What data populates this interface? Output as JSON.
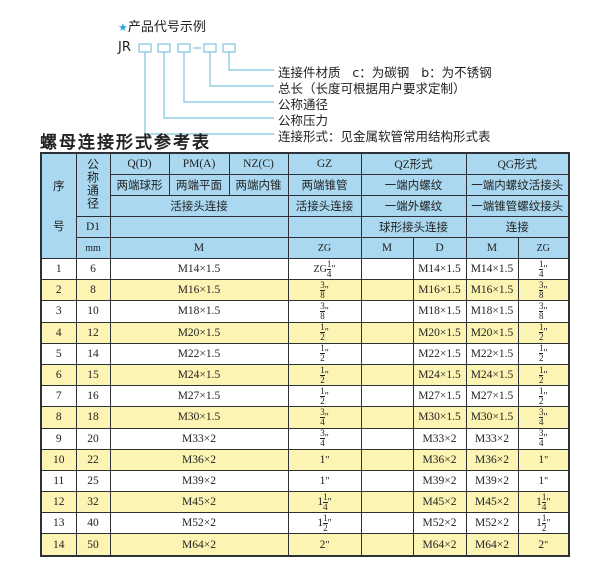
{
  "example": {
    "star_icon": "star-icon",
    "title": "产品代号示例",
    "code_prefix": "JR",
    "labels": [
      "连接件材质   c：为碳钢   b：为不锈钢",
      "总长（长度可根据用户要求定制）",
      "公称通径",
      "公称压力",
      "连接形式：见金属软管常用结构形式表"
    ],
    "accent_color": "#2aa6d9"
  },
  "title": "螺母连接形式参考表",
  "table": {
    "header": {
      "seq": "序",
      "seq2": "号",
      "dn": "公称通径",
      "d1": "D1",
      "mm": "mm",
      "qd": "Q(D)",
      "pma": "PM(A)",
      "nzc": "NZ(C)",
      "gz": "GZ",
      "qz": "QZ形式",
      "qg": "QG形式",
      "qd_desc": "两端球形",
      "pma_desc": "两端平面",
      "nzc_desc": "两端内锥",
      "gz_desc": "两端锥管",
      "qz_desc": "一端内螺纹",
      "qg_desc": "一端内螺纹活接头",
      "live_joint": "活接头连接",
      "gz_joint": "活接头连接",
      "qz_ext": "一端外螺纹",
      "qg_taper": "一端锥管螺纹接头",
      "qz_ball": "球形接头连接",
      "qg_conn": "连接",
      "m": "M",
      "zg": "ZG",
      "qz_m": "M",
      "qz_d": "D",
      "qg_m": "M",
      "qg_zg": "ZG"
    },
    "rows": [
      {
        "no": "1",
        "dn": "6",
        "m": "M14×1.5",
        "zg": {
          "pre": "ZG",
          "whole": "",
          "num": "1",
          "den": "4",
          "suf": "\""
        },
        "qz_d": "M14×1.5",
        "qg_m": "M14×1.5",
        "qg_zg": {
          "pre": "",
          "whole": "",
          "num": "1",
          "den": "4",
          "suf": "\""
        }
      },
      {
        "no": "2",
        "dn": "8",
        "m": "M16×1.5",
        "zg": {
          "pre": "",
          "whole": "",
          "num": "3",
          "den": "8",
          "suf": "\""
        },
        "qz_d": "M16×1.5",
        "qg_m": "M16×1.5",
        "qg_zg": {
          "pre": "",
          "whole": "",
          "num": "3",
          "den": "8",
          "suf": "\""
        }
      },
      {
        "no": "3",
        "dn": "10",
        "m": "M18×1.5",
        "zg": {
          "pre": "",
          "whole": "",
          "num": "3",
          "den": "8",
          "suf": "\""
        },
        "qz_d": "M18×1.5",
        "qg_m": "M18×1.5",
        "qg_zg": {
          "pre": "",
          "whole": "",
          "num": "3",
          "den": "8",
          "suf": "\""
        }
      },
      {
        "no": "4",
        "dn": "12",
        "m": "M20×1.5",
        "zg": {
          "pre": "",
          "whole": "",
          "num": "1",
          "den": "2",
          "suf": "\""
        },
        "qz_d": "M20×1.5",
        "qg_m": "M20×1.5",
        "qg_zg": {
          "pre": "",
          "whole": "",
          "num": "1",
          "den": "2",
          "suf": "\""
        }
      },
      {
        "no": "5",
        "dn": "14",
        "m": "M22×1.5",
        "zg": {
          "pre": "",
          "whole": "",
          "num": "1",
          "den": "2",
          "suf": "\""
        },
        "qz_d": "M22×1.5",
        "qg_m": "M22×1.5",
        "qg_zg": {
          "pre": "",
          "whole": "",
          "num": "1",
          "den": "2",
          "suf": "\""
        }
      },
      {
        "no": "6",
        "dn": "15",
        "m": "M24×1.5",
        "zg": {
          "pre": "",
          "whole": "",
          "num": "1",
          "den": "2",
          "suf": "\""
        },
        "qz_d": "M24×1.5",
        "qg_m": "M24×1.5",
        "qg_zg": {
          "pre": "",
          "whole": "",
          "num": "1",
          "den": "2",
          "suf": "\""
        }
      },
      {
        "no": "7",
        "dn": "16",
        "m": "M27×1.5",
        "zg": {
          "pre": "",
          "whole": "",
          "num": "1",
          "den": "2",
          "suf": "\""
        },
        "qz_d": "M27×1.5",
        "qg_m": "M27×1.5",
        "qg_zg": {
          "pre": "",
          "whole": "",
          "num": "1",
          "den": "2",
          "suf": "\""
        }
      },
      {
        "no": "8",
        "dn": "18",
        "m": "M30×1.5",
        "zg": {
          "pre": "",
          "whole": "",
          "num": "3",
          "den": "4",
          "suf": "\""
        },
        "qz_d": "M30×1.5",
        "qg_m": "M30×1.5",
        "qg_zg": {
          "pre": "",
          "whole": "",
          "num": "3",
          "den": "4",
          "suf": "\""
        }
      },
      {
        "no": "9",
        "dn": "20",
        "m": "M33×2",
        "zg": {
          "pre": "",
          "whole": "",
          "num": "3",
          "den": "4",
          "suf": "\""
        },
        "qz_d": "M33×2",
        "qg_m": "M33×2",
        "qg_zg": {
          "pre": "",
          "whole": "",
          "num": "3",
          "den": "4",
          "suf": "\""
        }
      },
      {
        "no": "10",
        "dn": "22",
        "m": "M36×2",
        "zg": {
          "pre": "",
          "whole": "1",
          "num": "",
          "den": "",
          "suf": "\""
        },
        "qz_d": "M36×2",
        "qg_m": "M36×2",
        "qg_zg": {
          "pre": "",
          "whole": "1",
          "num": "",
          "den": "",
          "suf": "\""
        }
      },
      {
        "no": "11",
        "dn": "25",
        "m": "M39×2",
        "zg": {
          "pre": "",
          "whole": "1",
          "num": "",
          "den": "",
          "suf": "\""
        },
        "qz_d": "M39×2",
        "qg_m": "M39×2",
        "qg_zg": {
          "pre": "",
          "whole": "1",
          "num": "",
          "den": "",
          "suf": "\""
        }
      },
      {
        "no": "12",
        "dn": "32",
        "m": "M45×2",
        "zg": {
          "pre": "",
          "whole": "1",
          "num": "1",
          "den": "4",
          "suf": "\""
        },
        "qz_d": "M45×2",
        "qg_m": "M45×2",
        "qg_zg": {
          "pre": "",
          "whole": "1",
          "num": "1",
          "den": "4",
          "suf": "\""
        }
      },
      {
        "no": "13",
        "dn": "40",
        "m": "M52×2",
        "zg": {
          "pre": "",
          "whole": "1",
          "num": "1",
          "den": "2",
          "suf": "\""
        },
        "qz_d": "M52×2",
        "qg_m": "M52×2",
        "qg_zg": {
          "pre": "",
          "whole": "1",
          "num": "1",
          "den": "2",
          "suf": "\""
        }
      },
      {
        "no": "14",
        "dn": "50",
        "m": "M64×2",
        "zg": {
          "pre": "",
          "whole": "2",
          "num": "",
          "den": "",
          "suf": "\""
        },
        "qz_d": "M64×2",
        "qg_m": "M64×2",
        "qg_zg": {
          "pre": "",
          "whole": "2",
          "num": "",
          "den": "",
          "suf": "\""
        }
      }
    ],
    "colors": {
      "header": "#a9d8f0",
      "stripe": "#fcf4b3"
    }
  }
}
